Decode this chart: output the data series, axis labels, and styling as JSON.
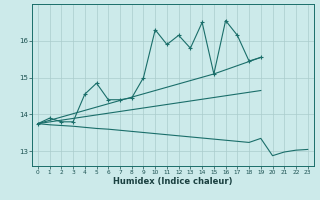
{
  "title": "",
  "xlabel": "Humidex (Indice chaleur)",
  "background_color": "#cceaea",
  "grid_color": "#aacccc",
  "line_color": "#1a6e6a",
  "xlim": [
    -0.5,
    23.5
  ],
  "ylim": [
    12.6,
    17.0
  ],
  "yticks": [
    13,
    14,
    15,
    16
  ],
  "xticks": [
    0,
    1,
    2,
    3,
    4,
    5,
    6,
    7,
    8,
    9,
    10,
    11,
    12,
    13,
    14,
    15,
    16,
    17,
    18,
    19,
    20,
    21,
    22,
    23
  ],
  "x": [
    0,
    1,
    2,
    3,
    4,
    5,
    6,
    7,
    8,
    9,
    10,
    11,
    12,
    13,
    14,
    15,
    16,
    17,
    18,
    19,
    20,
    21,
    22,
    23
  ],
  "line1_x": [
    0,
    1,
    2,
    3,
    4,
    5,
    6,
    7,
    8,
    9,
    10,
    11,
    12,
    13,
    14,
    15,
    16,
    17,
    18,
    19
  ],
  "line1_y": [
    13.75,
    13.9,
    13.8,
    13.8,
    14.55,
    14.85,
    14.4,
    14.4,
    14.45,
    15.0,
    16.3,
    15.9,
    16.15,
    15.8,
    16.5,
    15.1,
    16.55,
    16.15,
    15.45,
    15.55
  ],
  "line2_x": [
    0,
    15,
    19
  ],
  "line2_y": [
    13.75,
    15.1,
    15.55
  ],
  "line3_x": [
    0,
    1,
    2,
    3,
    4,
    5,
    6,
    7,
    8,
    9,
    10,
    11,
    12,
    13,
    14,
    15,
    16,
    17,
    18,
    19,
    20,
    21,
    22,
    23
  ],
  "line3_y": [
    13.75,
    13.72,
    13.7,
    13.68,
    13.65,
    13.62,
    13.6,
    13.57,
    13.54,
    13.51,
    13.48,
    13.45,
    13.42,
    13.39,
    13.36,
    13.33,
    13.3,
    13.27,
    13.24,
    13.35,
    12.88,
    12.98,
    13.03,
    13.05
  ],
  "line4_x": [
    0,
    19
  ],
  "line4_y": [
    13.75,
    14.65
  ]
}
